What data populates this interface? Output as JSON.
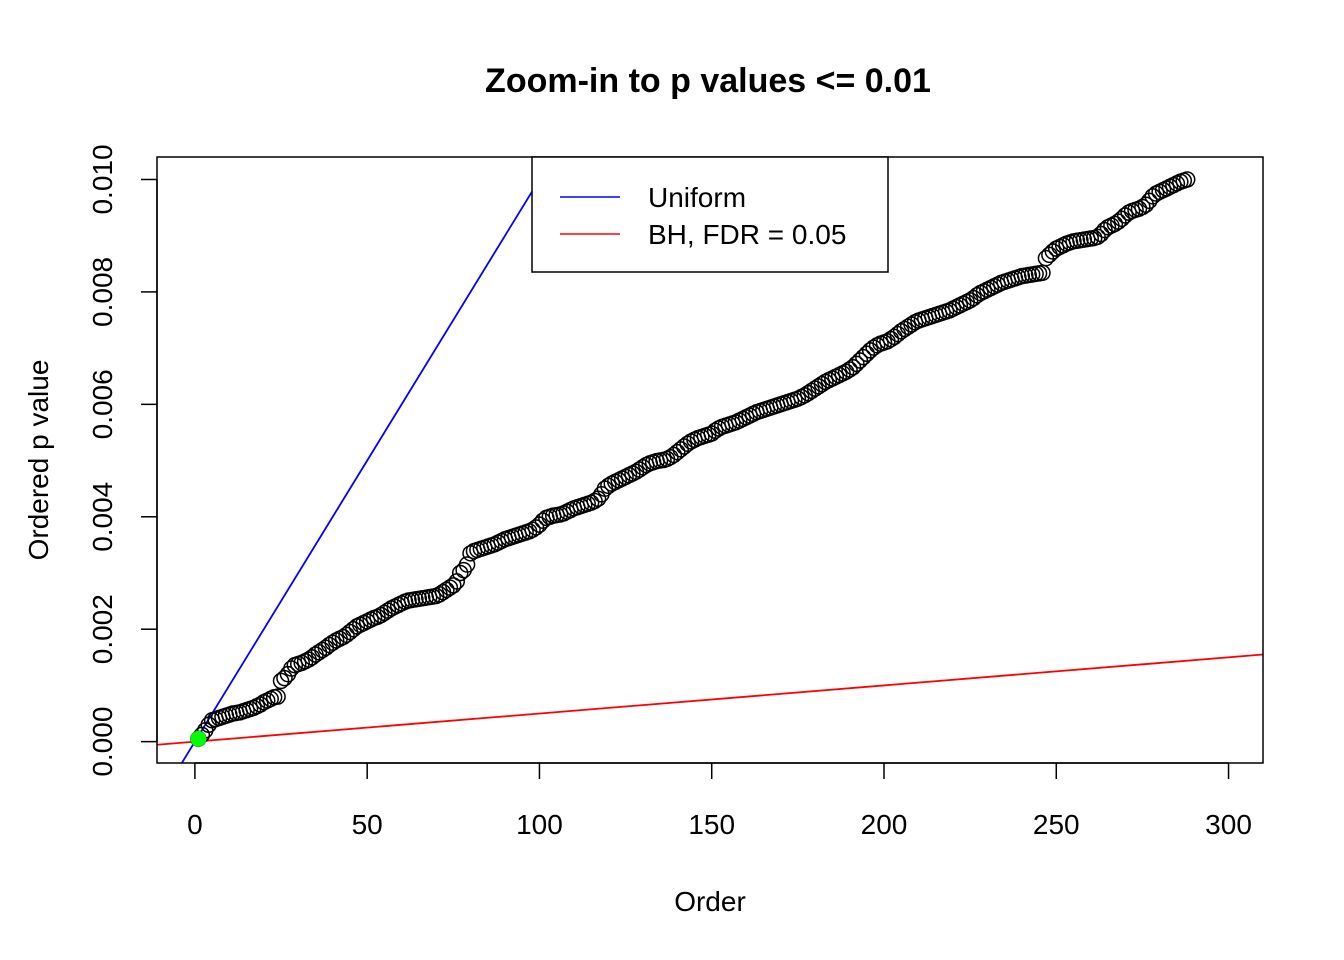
{
  "chart_data": {
    "type": "scatter",
    "title": "Zoom-in to p values <= 0.01",
    "xlabel": "Order",
    "ylabel": "Ordered p value",
    "xlim": [
      -11,
      310
    ],
    "ylim": [
      -0.00038,
      0.0104
    ],
    "x_ticks": [
      0,
      50,
      100,
      150,
      200,
      250,
      300
    ],
    "x_tick_labels": [
      "0",
      "50",
      "100",
      "150",
      "200",
      "250",
      "300"
    ],
    "y_ticks": [
      0.0,
      0.002,
      0.004,
      0.006,
      0.008,
      0.01
    ],
    "y_tick_labels": [
      "0.000",
      "0.002",
      "0.004",
      "0.006",
      "0.008",
      "0.010"
    ],
    "grid": false,
    "legend": {
      "position": "top-center",
      "entries": [
        {
          "label": "Uniform",
          "color": "#0000ff"
        },
        {
          "label": "BH, FDR = 0.05",
          "color": "#ff0000"
        }
      ]
    },
    "reference_lines": [
      {
        "name": "Uniform",
        "color": "#0000ff",
        "slope": 0.0001,
        "intercept": 0
      },
      {
        "name": "BH, FDR = 0.05",
        "color": "#ff0000",
        "slope": 5e-06,
        "intercept": 0
      }
    ],
    "highlight_point": {
      "x": 1,
      "y": 5e-05,
      "color": "#00ff00"
    },
    "series_color": "#000000",
    "points_y_by_order": [
      5e-05,
      0.00012,
      0.0002,
      0.0003,
      0.00038,
      0.0004,
      0.00042,
      0.00044,
      0.00046,
      0.00048,
      0.0005,
      0.00051,
      0.00052,
      0.00054,
      0.00056,
      0.00058,
      0.0006,
      0.00063,
      0.00066,
      0.0007,
      0.00073,
      0.00076,
      0.00079,
      0.0008,
      0.00108,
      0.00113,
      0.0012,
      0.0013,
      0.00136,
      0.00138,
      0.0014,
      0.00143,
      0.00146,
      0.0015,
      0.00155,
      0.00159,
      0.00163,
      0.00167,
      0.00172,
      0.00176,
      0.0018,
      0.00183,
      0.00186,
      0.0019,
      0.00195,
      0.002,
      0.00205,
      0.00208,
      0.00211,
      0.00214,
      0.00217,
      0.0022,
      0.00222,
      0.00225,
      0.00229,
      0.00233,
      0.00237,
      0.0024,
      0.00243,
      0.00246,
      0.00249,
      0.00251,
      0.00252,
      0.00253,
      0.00254,
      0.00255,
      0.00256,
      0.00257,
      0.00258,
      0.00259,
      0.00262,
      0.00266,
      0.0027,
      0.00274,
      0.00278,
      0.00285,
      0.003,
      0.00305,
      0.00315,
      0.00335,
      0.00339,
      0.00341,
      0.00343,
      0.00345,
      0.00347,
      0.00349,
      0.00351,
      0.00354,
      0.00357,
      0.0036,
      0.00362,
      0.00364,
      0.00366,
      0.00368,
      0.0037,
      0.00372,
      0.00374,
      0.00377,
      0.00381,
      0.00386,
      0.00393,
      0.00398,
      0.004,
      0.00402,
      0.00403,
      0.00404,
      0.00406,
      0.00409,
      0.00412,
      0.00415,
      0.00417,
      0.00419,
      0.00421,
      0.00423,
      0.00425,
      0.00428,
      0.00432,
      0.0044,
      0.0045,
      0.00455,
      0.00459,
      0.00462,
      0.00465,
      0.00468,
      0.00471,
      0.00474,
      0.00477,
      0.0048,
      0.00484,
      0.00488,
      0.00492,
      0.00495,
      0.00497,
      0.00499,
      0.005,
      0.00501,
      0.00503,
      0.00506,
      0.0051,
      0.00515,
      0.0052,
      0.00525,
      0.0053,
      0.00534,
      0.00537,
      0.0054,
      0.00542,
      0.00544,
      0.00546,
      0.00548,
      0.00553,
      0.00557,
      0.0056,
      0.00562,
      0.00564,
      0.00566,
      0.00568,
      0.00571,
      0.00574,
      0.00577,
      0.0058,
      0.00583,
      0.00586,
      0.00588,
      0.0059,
      0.00592,
      0.00594,
      0.00596,
      0.00598,
      0.006,
      0.00602,
      0.00604,
      0.00606,
      0.00608,
      0.0061,
      0.00613,
      0.00616,
      0.0062,
      0.00624,
      0.00628,
      0.00632,
      0.00636,
      0.0064,
      0.00643,
      0.00646,
      0.00649,
      0.00652,
      0.00655,
      0.00658,
      0.00662,
      0.00666,
      0.00672,
      0.00678,
      0.00684,
      0.0069,
      0.00696,
      0.00701,
      0.00705,
      0.00708,
      0.0071,
      0.00712,
      0.00716,
      0.0072,
      0.00725,
      0.0073,
      0.00734,
      0.00738,
      0.00742,
      0.00746,
      0.00749,
      0.00751,
      0.00753,
      0.00755,
      0.00757,
      0.00759,
      0.00761,
      0.00763,
      0.00765,
      0.00767,
      0.0077,
      0.00773,
      0.00776,
      0.00779,
      0.00782,
      0.00785,
      0.00789,
      0.00794,
      0.00798,
      0.00801,
      0.00804,
      0.00807,
      0.0081,
      0.00813,
      0.00816,
      0.00818,
      0.0082,
      0.00822,
      0.00824,
      0.00826,
      0.00828,
      0.00829,
      0.0083,
      0.00831,
      0.00832,
      0.00833,
      0.00834,
      0.0086,
      0.00866,
      0.00872,
      0.00877,
      0.0088,
      0.00883,
      0.00886,
      0.00888,
      0.0089,
      0.00891,
      0.00892,
      0.00893,
      0.00894,
      0.00895,
      0.00896,
      0.00898,
      0.00903,
      0.0091,
      0.00915,
      0.00918,
      0.00921,
      0.00925,
      0.0093,
      0.00936,
      0.00941,
      0.00944,
      0.00946,
      0.00948,
      0.00951,
      0.00955,
      0.00962,
      0.0097,
      0.00975,
      0.00978,
      0.00981,
      0.00984,
      0.00987,
      0.0099,
      0.00993,
      0.00996,
      0.00998,
      0.01
    ]
  }
}
